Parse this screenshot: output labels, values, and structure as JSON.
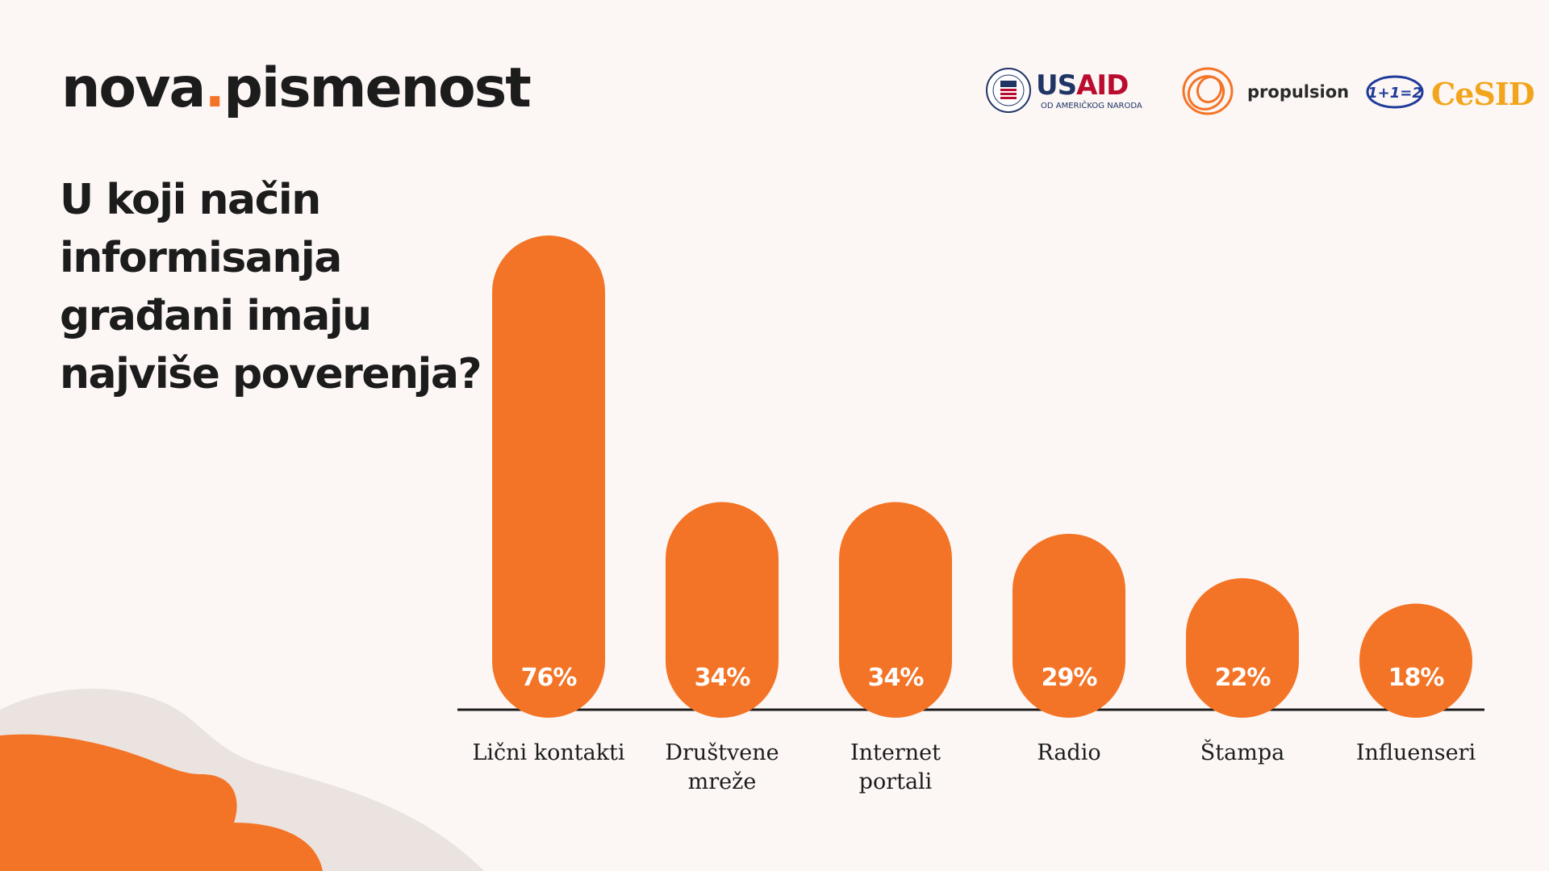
{
  "header": {
    "brand_left": "nova",
    "brand_dot": ".",
    "brand_right": "pismenost",
    "question": "U koji način\ninformisanja\ngrađani imaju\nnajviše poverenja?"
  },
  "logos": {
    "usaid_a": "US",
    "usaid_b": "AID",
    "usaid_sub": "OD AMERIČKOG NARODA",
    "propulsion": "propulsion",
    "cesid": "CeSID",
    "cesid_mark": "1+1=2"
  },
  "colors": {
    "accent": "#f37426",
    "background": "#fcf6f4",
    "text": "#1c1c1c",
    "blob_light": "#ebe3df"
  },
  "chart_data": {
    "type": "bar",
    "categories": [
      "Lični kontakti",
      "Društvene mreže",
      "Internet portali",
      "Radio",
      "Štampa",
      "Influenseri"
    ],
    "category_lines": [
      [
        "Lični kontakti"
      ],
      [
        "Društvene",
        "mreže"
      ],
      [
        "Internet",
        "portali"
      ],
      [
        "Radio"
      ],
      [
        "Štampa"
      ],
      [
        "Influenseri"
      ]
    ],
    "values": [
      76,
      34,
      34,
      29,
      22,
      18
    ],
    "value_labels": [
      "76%",
      "34%",
      "34%",
      "29%",
      "22%",
      "18%"
    ],
    "title": "U koji način informisanja građani imaju najviše poverenja?",
    "unit": "%",
    "ylim": [
      0,
      76
    ],
    "grid": false,
    "legend": "none",
    "bar_color": "#f37426"
  }
}
